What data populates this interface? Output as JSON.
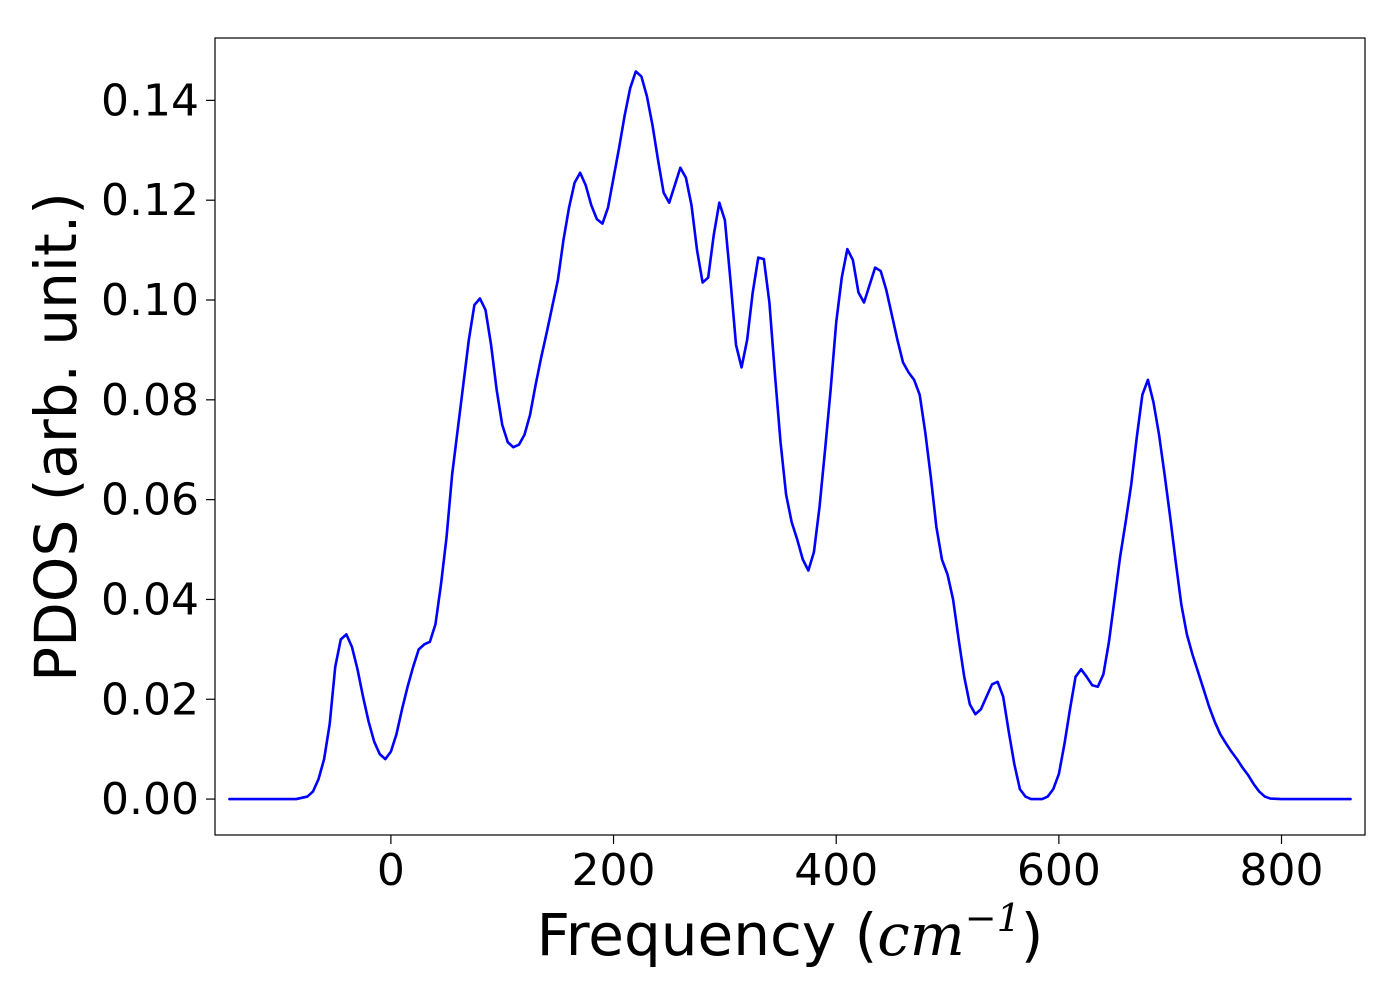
{
  "chart_data": {
    "type": "line",
    "title": "",
    "xlabel": "Frequency",
    "xlabel_unit_base": "cm",
    "xlabel_unit_exp": "−1",
    "ylabel": "PDOS (arb. unit.)",
    "xlim": [
      -158,
      875
    ],
    "ylim": [
      -0.0072,
      0.1525
    ],
    "xticks": [
      0,
      200,
      400,
      600,
      800
    ],
    "xtick_labels": [
      "0",
      "200",
      "400",
      "600",
      "800"
    ],
    "yticks": [
      0.0,
      0.02,
      0.04,
      0.06,
      0.08,
      0.1,
      0.12,
      0.14
    ],
    "ytick_labels": [
      "0.00",
      "0.02",
      "0.04",
      "0.06",
      "0.08",
      "0.10",
      "0.12",
      "0.14"
    ],
    "grid": false,
    "series": [
      {
        "color": "#0000ff",
        "x": [
          -145,
          -120,
          -100,
          -85,
          -75,
          -70,
          -65,
          -60,
          -55,
          -50,
          -45,
          -40,
          -35,
          -30,
          -25,
          -20,
          -15,
          -10,
          -5,
          0,
          5,
          10,
          15,
          20,
          25,
          30,
          35,
          40,
          45,
          50,
          55,
          60,
          65,
          70,
          75,
          80,
          85,
          90,
          95,
          100,
          105,
          110,
          115,
          120,
          125,
          130,
          135,
          140,
          150,
          155,
          160,
          165,
          170,
          175,
          180,
          185,
          190,
          195,
          200,
          205,
          210,
          215,
          220,
          225,
          230,
          235,
          240,
          245,
          250,
          255,
          260,
          265,
          270,
          275,
          280,
          285,
          290,
          295,
          300,
          305,
          310,
          315,
          320,
          325,
          330,
          335,
          340,
          345,
          350,
          355,
          360,
          365,
          370,
          375,
          380,
          385,
          390,
          395,
          400,
          405,
          410,
          415,
          420,
          425,
          430,
          435,
          440,
          445,
          450,
          455,
          460,
          465,
          470,
          475,
          480,
          485,
          490,
          495,
          500,
          505,
          510,
          515,
          520,
          525,
          530,
          535,
          540,
          545,
          550,
          555,
          560,
          565,
          570,
          575,
          580,
          585,
          590,
          595,
          600,
          605,
          610,
          615,
          620,
          625,
          630,
          635,
          640,
          645,
          650,
          655,
          660,
          665,
          670,
          675,
          680,
          685,
          690,
          695,
          700,
          705,
          710,
          715,
          720,
          725,
          730,
          735,
          740,
          745,
          750,
          755,
          760,
          765,
          770,
          775,
          780,
          785,
          790,
          800,
          820,
          840,
          862
        ],
        "y": [
          0.0,
          0.0,
          0.0,
          0.0,
          0.0005,
          0.0015,
          0.004,
          0.008,
          0.015,
          0.0265,
          0.032,
          0.033,
          0.0305,
          0.026,
          0.0205,
          0.0155,
          0.0115,
          0.009,
          0.008,
          0.0095,
          0.013,
          0.018,
          0.0225,
          0.0265,
          0.03,
          0.031,
          0.0315,
          0.035,
          0.043,
          0.0525,
          0.065,
          0.074,
          0.083,
          0.092,
          0.099,
          0.1003,
          0.098,
          0.091,
          0.082,
          0.075,
          0.0715,
          0.0705,
          0.071,
          0.073,
          0.077,
          0.083,
          0.0885,
          0.0935,
          0.104,
          0.112,
          0.1185,
          0.1235,
          0.1255,
          0.123,
          0.119,
          0.1162,
          0.1153,
          0.1185,
          0.1245,
          0.1305,
          0.137,
          0.1425,
          0.1458,
          0.1448,
          0.1408,
          0.135,
          0.128,
          0.1215,
          0.1195,
          0.123,
          0.1265,
          0.1245,
          0.119,
          0.11,
          0.1035,
          0.1045,
          0.113,
          0.1195,
          0.116,
          0.104,
          0.091,
          0.0865,
          0.092,
          0.1015,
          0.1085,
          0.1082,
          0.0995,
          0.085,
          0.0715,
          0.061,
          0.0555,
          0.052,
          0.048,
          0.0458,
          0.0495,
          0.0585,
          0.07,
          0.082,
          0.0955,
          0.1045,
          0.1102,
          0.108,
          0.1015,
          0.0995,
          0.103,
          0.1065,
          0.1058,
          0.102,
          0.097,
          0.092,
          0.0875,
          0.0855,
          0.084,
          0.081,
          0.0735,
          0.0645,
          0.0545,
          0.048,
          0.045,
          0.04,
          0.032,
          0.0245,
          0.019,
          0.017,
          0.018,
          0.0205,
          0.023,
          0.0235,
          0.0205,
          0.0135,
          0.007,
          0.002,
          0.0005,
          0.0,
          0.0,
          0.0,
          0.0005,
          0.002,
          0.005,
          0.011,
          0.018,
          0.0245,
          0.026,
          0.0245,
          0.0228,
          0.0225,
          0.025,
          0.0315,
          0.04,
          0.0485,
          0.0555,
          0.063,
          0.0725,
          0.081,
          0.084,
          0.0795,
          0.073,
          0.065,
          0.0565,
          0.0475,
          0.039,
          0.033,
          0.029,
          0.0255,
          0.022,
          0.0185,
          0.0155,
          0.013,
          0.0112,
          0.0095,
          0.008,
          0.0063,
          0.0048,
          0.003,
          0.0015,
          0.0005,
          0.0001,
          0.0,
          0.0,
          0.0,
          0.0
        ]
      }
    ]
  }
}
